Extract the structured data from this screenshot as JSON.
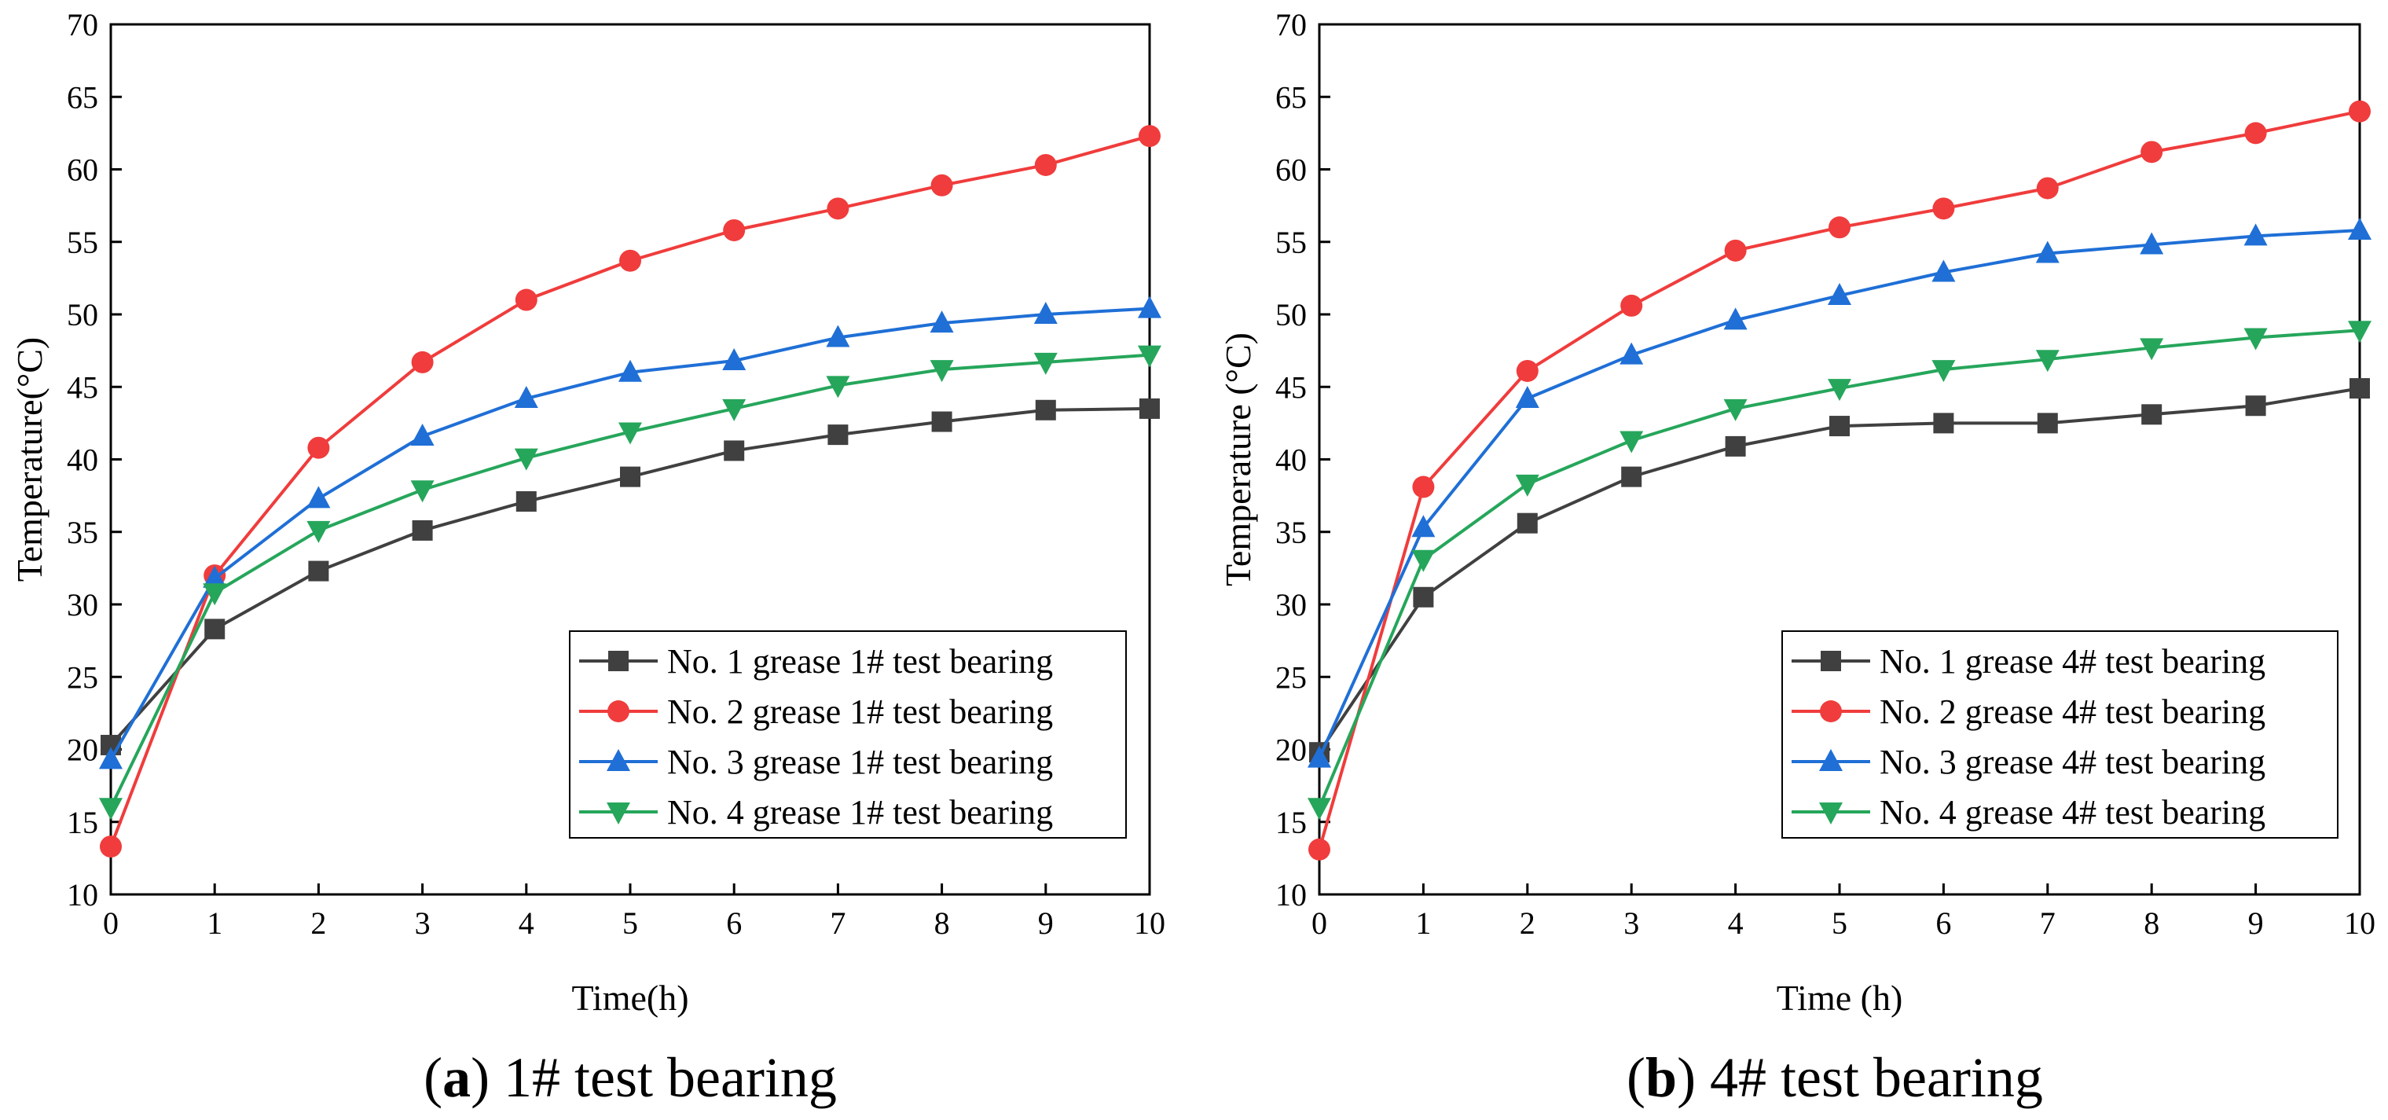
{
  "chart_data": [
    {
      "type": "line",
      "caption_letter": "a",
      "caption_rest": ") 1# test bearing",
      "caption_open": "(",
      "xlabel": "Time(h)",
      "ylabel": "Temperature(°C)",
      "xlim": [
        0,
        10
      ],
      "ylim": [
        10,
        70
      ],
      "x_ticks": [
        0,
        1,
        2,
        3,
        4,
        5,
        6,
        7,
        8,
        9,
        10
      ],
      "y_ticks": [
        10,
        15,
        20,
        25,
        30,
        35,
        40,
        45,
        50,
        55,
        60,
        65,
        70
      ],
      "legend_position": "bottom-right",
      "x": [
        0,
        1,
        2,
        3,
        4,
        5,
        6,
        7,
        8,
        9,
        10
      ],
      "series": [
        {
          "name": "No. 1 grease 1# test bearing",
          "color": "#404040",
          "marker": "square",
          "values": [
            20.3,
            28.3,
            32.3,
            35.1,
            37.1,
            38.8,
            40.6,
            41.7,
            42.6,
            43.4,
            43.5
          ]
        },
        {
          "name": "No. 2 grease 1# test bearing",
          "color": "#f03c3c",
          "marker": "circle",
          "values": [
            13.3,
            32.0,
            40.8,
            46.7,
            51.0,
            53.7,
            55.8,
            57.3,
            58.9,
            60.3,
            62.3
          ]
        },
        {
          "name": "No. 3 grease 1# test bearing",
          "color": "#1f6fd6",
          "marker": "triangle-up",
          "values": [
            19.3,
            31.8,
            37.3,
            41.6,
            44.2,
            46.0,
            46.8,
            48.4,
            49.4,
            50.0,
            50.4
          ]
        },
        {
          "name": "No. 4 grease 1# test bearing",
          "color": "#26a65b",
          "marker": "triangle-down",
          "values": [
            16.0,
            30.8,
            35.1,
            37.9,
            40.1,
            41.9,
            43.5,
            45.1,
            46.2,
            46.7,
            47.2
          ]
        }
      ]
    },
    {
      "type": "line",
      "caption_letter": "b",
      "caption_rest": ") 4# test bearing",
      "caption_open": "(",
      "xlabel": "Time (h)",
      "ylabel": "Temperature (°C)",
      "xlim": [
        0,
        10
      ],
      "ylim": [
        10,
        70
      ],
      "x_ticks": [
        0,
        1,
        2,
        3,
        4,
        5,
        6,
        7,
        8,
        9,
        10
      ],
      "y_ticks": [
        10,
        15,
        20,
        25,
        30,
        35,
        40,
        45,
        50,
        55,
        60,
        65,
        70
      ],
      "legend_position": "bottom-right",
      "x": [
        0,
        1,
        2,
        3,
        4,
        5,
        6,
        7,
        8,
        9,
        10
      ],
      "series": [
        {
          "name": "No. 1 grease 4# test bearing",
          "color": "#404040",
          "marker": "square",
          "values": [
            19.8,
            30.5,
            35.6,
            38.8,
            40.9,
            42.3,
            42.5,
            42.5,
            43.1,
            43.7,
            44.9
          ]
        },
        {
          "name": "No. 2 grease 4# test bearing",
          "color": "#f03c3c",
          "marker": "circle",
          "values": [
            13.1,
            38.1,
            46.1,
            50.6,
            54.4,
            56.0,
            57.3,
            58.7,
            61.2,
            62.5,
            64.0
          ]
        },
        {
          "name": "No. 3 grease 4# test bearing",
          "color": "#1f6fd6",
          "marker": "triangle-up",
          "values": [
            19.4,
            35.3,
            44.2,
            47.2,
            49.6,
            51.3,
            52.9,
            54.2,
            54.8,
            55.4,
            55.8
          ]
        },
        {
          "name": "No. 4 grease 4# test bearing",
          "color": "#26a65b",
          "marker": "triangle-down",
          "values": [
            16.0,
            33.1,
            38.3,
            41.3,
            43.5,
            44.9,
            46.2,
            46.9,
            47.7,
            48.4,
            48.9
          ]
        }
      ]
    }
  ]
}
